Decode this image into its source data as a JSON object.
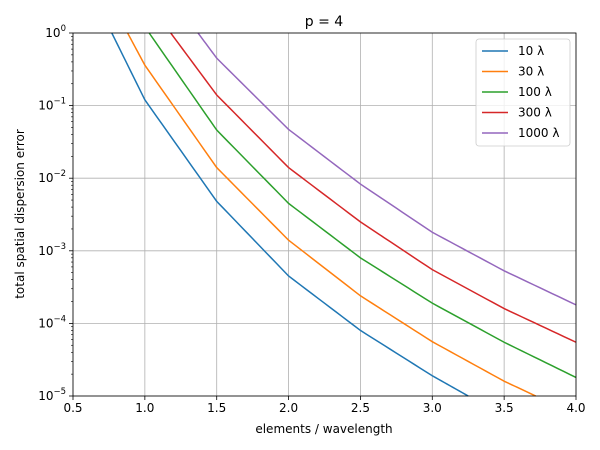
{
  "chart_data": {
    "type": "line",
    "title": "p = 4",
    "xlabel": "elements / wavelength",
    "ylabel": "total spatial dispersion error",
    "xlim": [
      0.5,
      4.0
    ],
    "ylim": [
      1e-05,
      1
    ],
    "yscale": "log",
    "grid": true,
    "legend_position": "top-right",
    "x_ticks": [
      0.5,
      1.0,
      1.5,
      2.0,
      2.5,
      3.0,
      3.5,
      4.0
    ],
    "x_tick_labels": [
      "0.5",
      "1.0",
      "1.5",
      "2.0",
      "2.5",
      "3.0",
      "3.5",
      "4.0"
    ],
    "y_ticks": [
      1e-05,
      0.0001,
      0.001,
      0.01,
      0.1,
      1
    ],
    "y_tick_labels": [
      {
        "base": "10",
        "exp": "−5"
      },
      {
        "base": "10",
        "exp": "−4"
      },
      {
        "base": "10",
        "exp": "−3"
      },
      {
        "base": "10",
        "exp": "−2"
      },
      {
        "base": "10",
        "exp": "−1"
      },
      {
        "base": "10",
        "exp": "0"
      }
    ],
    "series": [
      {
        "name": "10 λ",
        "color": "#1f77b4",
        "x": [
          0.77,
          1.0,
          1.5,
          2.0,
          2.5,
          3.0,
          3.25
        ],
        "y": [
          1.0,
          0.12,
          0.0048,
          0.00045,
          8e-05,
          1.9e-05,
          1e-05
        ]
      },
      {
        "name": "30 λ",
        "color": "#ff7f0e",
        "x": [
          0.88,
          1.0,
          1.5,
          2.0,
          2.5,
          3.0,
          3.5,
          3.72
        ],
        "y": [
          1.0,
          0.36,
          0.014,
          0.0014,
          0.00024,
          5.6e-05,
          1.6e-05,
          1e-05
        ]
      },
      {
        "name": "100 λ",
        "color": "#2ca02c",
        "x": [
          1.03,
          1.5,
          2.0,
          2.5,
          3.0,
          3.5,
          4.0
        ],
        "y": [
          1.0,
          0.046,
          0.0045,
          0.0008,
          0.00019,
          5.5e-05,
          1.8e-05
        ]
      },
      {
        "name": "300 λ",
        "color": "#d62728",
        "x": [
          1.18,
          1.5,
          2.0,
          2.5,
          3.0,
          3.5,
          4.0
        ],
        "y": [
          1.0,
          0.14,
          0.014,
          0.0025,
          0.00055,
          0.00016,
          5.5e-05
        ]
      },
      {
        "name": "1000 λ",
        "color": "#9467bd",
        "x": [
          1.37,
          1.5,
          2.0,
          2.5,
          3.0,
          3.5,
          4.0
        ],
        "y": [
          1.0,
          0.45,
          0.047,
          0.0083,
          0.0018,
          0.00053,
          0.00018
        ]
      }
    ]
  }
}
